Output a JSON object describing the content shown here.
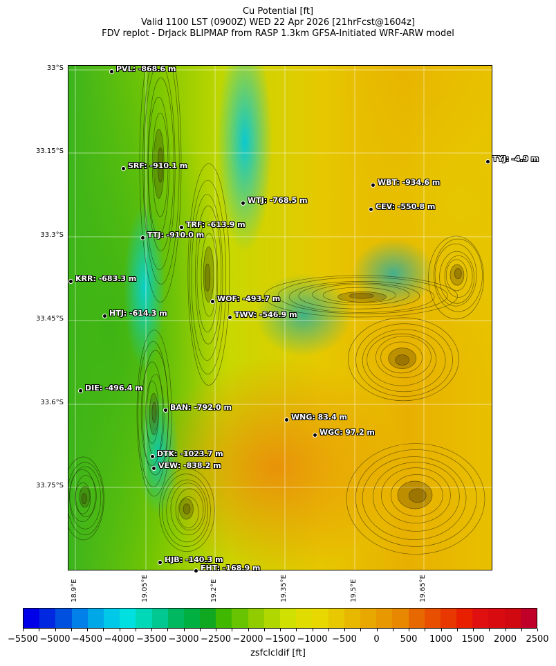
{
  "title": {
    "line1": "Cu Potential [ft]",
    "line2": "Valid 1100 LST (0900Z) WED 22 Apr 2026 [21hrFcst@1604z]",
    "line3": "FDV replot - DrJack BLIPMAP from RASP 1.3km GFSA-Initiated WRF-ARW model"
  },
  "map": {
    "lat_ticks": [
      "33°S",
      "33.15°S",
      "33.3°S",
      "33.45°S",
      "33.6°S",
      "33.75°S"
    ],
    "lon_ticks": [
      "18.9°E",
      "19.05°E",
      "19.2°E",
      "19.35°E",
      "19.5°E",
      "19.65°E"
    ],
    "stations": [
      {
        "label": "PVL: -868.6 m"
      },
      {
        "label": "SRF: -910.1 m"
      },
      {
        "label": "TYJ: -4.9 m"
      },
      {
        "label": "WBT: -934.6 m"
      },
      {
        "label": "WTJ: -768.5 m"
      },
      {
        "label": "CEV: -550.8 m"
      },
      {
        "label": "TRF: -613.9 m"
      },
      {
        "label": "TTJ: -910.0 m"
      },
      {
        "label": "KRR: -683.3 m"
      },
      {
        "label": "WOF: -493.7 m"
      },
      {
        "label": "HTJ: -614.3 m"
      },
      {
        "label": "TWV: -546.9 m"
      },
      {
        "label": "DIE: -496.4 m"
      },
      {
        "label": "BAN: -792.0 m"
      },
      {
        "label": "WNG: 83.4 m"
      },
      {
        "label": "WGC: 97.2 m"
      },
      {
        "label": "DTK: -1023.7 m"
      },
      {
        "label": "VEW: -838.2 m"
      },
      {
        "label": "HJB: -140.3 m"
      },
      {
        "label": "FHT: -168.9 m"
      }
    ]
  },
  "colorbar": {
    "label": "zsfclcldif [ft]",
    "range": [
      -5500,
      2500
    ],
    "step": 250,
    "tick_labels": [
      "−5500",
      "−5000",
      "−4500",
      "−4000",
      "−3500",
      "−3000",
      "−2500",
      "−2000",
      "−1500",
      "−1000",
      "−500",
      "0",
      "500",
      "1000",
      "1500",
      "2000",
      "2500"
    ],
    "colors": [
      "#0000e8",
      "#0028e0",
      "#0050e0",
      "#0080e8",
      "#00a8e8",
      "#00c8e8",
      "#00e0e0",
      "#00d8b8",
      "#00c890",
      "#00b860",
      "#00b040",
      "#10a820",
      "#40b800",
      "#68c400",
      "#90cc00",
      "#b0d800",
      "#d0e000",
      "#e0dc00",
      "#e8d800",
      "#e8c800",
      "#e8b800",
      "#e8a800",
      "#e89800",
      "#e88800",
      "#e86800",
      "#e85000",
      "#e83800",
      "#e82000",
      "#e01010",
      "#d80c10",
      "#d00810",
      "#c00028"
    ]
  }
}
